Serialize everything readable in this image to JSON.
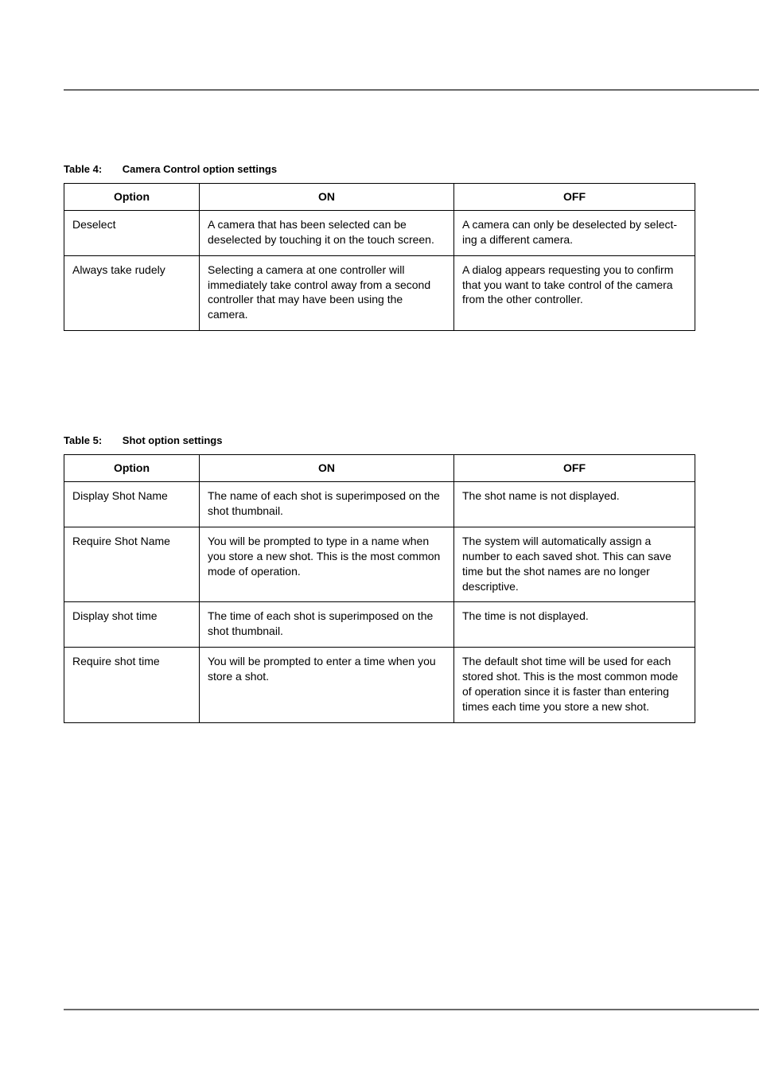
{
  "rules": {
    "color": "#6a6a6a"
  },
  "table4": {
    "label": "Table 4:",
    "title": "Camera Control option settings",
    "headers": {
      "option": "Option",
      "on": "ON",
      "off": "OFF"
    },
    "rows": [
      {
        "option": "Deselect",
        "on": "A camera that has been selected can be deselected by touching it on the touch screen.",
        "off": "A camera can only be deselected by select­ing a different camera."
      },
      {
        "option": "Always take rudely",
        "on": "Selecting a camera at one controller will immediately take control away from a sec­ond controller that may have been using the camera.",
        "off": "A dialog appears requesting you to confirm that you want to take control of the camera from the other controller."
      }
    ]
  },
  "table5": {
    "label": "Table 5:",
    "title": "Shot option settings",
    "headers": {
      "option": "Option",
      "on": "ON",
      "off": "OFF"
    },
    "rows": [
      {
        "option": "Display Shot Name",
        "on": "The name of each shot is superimposed on the shot thumbnail.",
        "off": "The shot name is not displayed."
      },
      {
        "option": "Require Shot Name",
        "on": "You will be prompted to type in a name when you store a new shot. This is the most common mode of operation.",
        "off": "The system will automatically assign a number to each saved shot. This can save time but the shot names are no longer descriptive."
      },
      {
        "option": "Display shot time",
        "on": "The time of each shot is superimposed on the shot thumbnail.",
        "off": "The time is not displayed."
      },
      {
        "option": "Require shot time",
        "on": "You will be prompted to enter a time when you store a shot.",
        "off": "The default shot time will be used for each stored shot. This is the most common mode of operation since it is faster than entering times each time you store a new shot."
      }
    ]
  }
}
